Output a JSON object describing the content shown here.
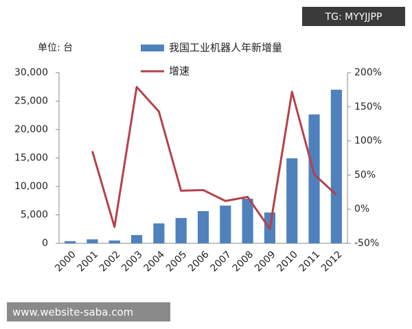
{
  "chart_data": {
    "type": "bar-line",
    "unit_label": "单位: 台",
    "watermarks": [
      "TG: MYYJJPP",
      "www.website-saba.com"
    ],
    "categories": [
      "2000",
      "2001",
      "2002",
      "2003",
      "2004",
      "2005",
      "2006",
      "2007",
      "2008",
      "2009",
      "2010",
      "2011",
      "2012"
    ],
    "series": [
      {
        "name": "我国工业机器人年新增量",
        "type": "bar",
        "color": "#4f81bd",
        "values": [
          380,
          700,
          500,
          1450,
          3500,
          4450,
          5660,
          6630,
          7830,
          5420,
          14940,
          22650,
          27000
        ]
      },
      {
        "name": "增速",
        "type": "line",
        "axis": "y2",
        "color": "#b5404b",
        "values": [
          null,
          85,
          -26,
          179,
          143,
          27,
          28,
          12,
          18,
          -29,
          172,
          51,
          21
        ]
      }
    ],
    "ylim": [
      0,
      30000
    ],
    "yticks": [
      0,
      {
        "value": 5000,
        "label": "5,000"
      },
      {
        "value": 10000,
        "label": "10,000"
      },
      {
        "value": 15000,
        "label": "15,000"
      },
      {
        "value": 20000,
        "label": "20,000"
      },
      {
        "value": 25000,
        "label": "25,000"
      },
      {
        "value": 30000,
        "label": "30,000"
      }
    ],
    "y2lim": [
      -50,
      200
    ],
    "y2ticks": [
      {
        "value": -50,
        "label": "-50%"
      },
      {
        "value": 0,
        "label": "0%"
      },
      {
        "value": 50,
        "label": "50%"
      },
      {
        "value": 100,
        "label": "100%"
      },
      {
        "value": 150,
        "label": "150%"
      },
      {
        "value": 200,
        "label": "200%"
      }
    ],
    "grid": false
  }
}
